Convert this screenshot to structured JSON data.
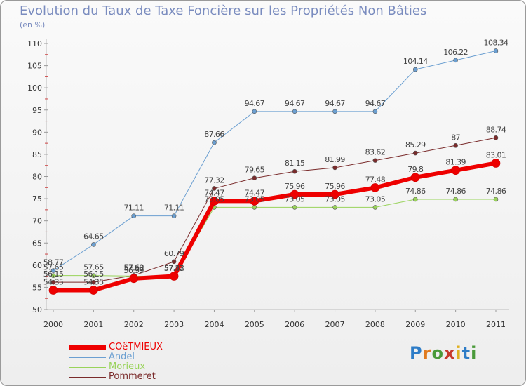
{
  "header": {
    "title": "Evolution du Taux de Taxe Foncière sur les Propriétés Non Bâties",
    "unit": "(en %)"
  },
  "logo": {
    "text": "Proxiti"
  },
  "chart_data": {
    "type": "line",
    "title": "Evolution du Taux de Taxe Foncière sur les Propriétés Non Bâties",
    "ylabel": "(en %)",
    "xlabel": "",
    "x": [
      "2000",
      "2001",
      "2002",
      "2003",
      "2004",
      "2005",
      "2006",
      "2007",
      "2008",
      "2009",
      "2010",
      "2011"
    ],
    "ylim": [
      50,
      110
    ],
    "yticks": [
      50,
      55,
      60,
      65,
      70,
      75,
      80,
      85,
      90,
      95,
      100,
      105,
      110
    ],
    "grid": false,
    "legend_position": "bottom-left",
    "series": [
      {
        "name": "Andel",
        "color": "#6b9fd1",
        "width": 1,
        "values": [
          58.77,
          64.65,
          71.11,
          71.11,
          87.66,
          94.67,
          94.67,
          94.67,
          94.67,
          104.14,
          106.22,
          108.34
        ],
        "labels": [
          "58.77",
          "64.65",
          "71.11",
          "71.11",
          "87.66",
          "94.67",
          "94.67",
          "94.67",
          "94.67",
          "104.14",
          "106.22",
          "108.34"
        ]
      },
      {
        "name": "Pommeret",
        "color": "#7a2b2b",
        "width": 1,
        "values": [
          56.15,
          56.15,
          57.69,
          60.79,
          77.32,
          79.65,
          81.15,
          81.99,
          83.62,
          85.29,
          87,
          88.74
        ],
        "labels": [
          "56.15",
          "56.15",
          "57.69",
          "60.79",
          "77.32",
          "79.65",
          "81.15",
          "81.99",
          "83.62",
          "85.29",
          "87",
          "88.74"
        ]
      },
      {
        "name": "Morieux",
        "color": "#99d35a",
        "width": 1,
        "values": [
          57.65,
          57.65,
          57.53,
          57.43,
          73.05,
          73.05,
          73.05,
          73.05,
          73.05,
          74.86,
          74.86,
          74.86
        ],
        "labels": [
          "57.65",
          "57.65",
          "57.53",
          "57.43",
          "73.05",
          "73.05",
          "73.05",
          "73.05",
          "73.05",
          "74.86",
          "74.86",
          "74.86"
        ]
      },
      {
        "name": "COëTMIEUX",
        "color": "#ee0000",
        "width": 6,
        "values": [
          54.35,
          54.35,
          56.99,
          57.52,
          74.47,
          74.47,
          75.96,
          75.96,
          77.48,
          79.8,
          81.39,
          83.01
        ],
        "labels": [
          "54.35",
          "54.35",
          "56.99",
          "57.52",
          "74.47",
          "74.47",
          "75.96",
          "75.96",
          "77.48",
          "79.8",
          "81.39",
          "83.01"
        ]
      }
    ],
    "legend": [
      {
        "name": "COëTMIEUX",
        "color": "#ee0000",
        "width": 6
      },
      {
        "name": "Andel",
        "color": "#6b9fd1",
        "width": 1
      },
      {
        "name": "Morieux",
        "color": "#99d35a",
        "width": 1
      },
      {
        "name": "Pommeret",
        "color": "#7a2b2b",
        "width": 1
      }
    ]
  }
}
